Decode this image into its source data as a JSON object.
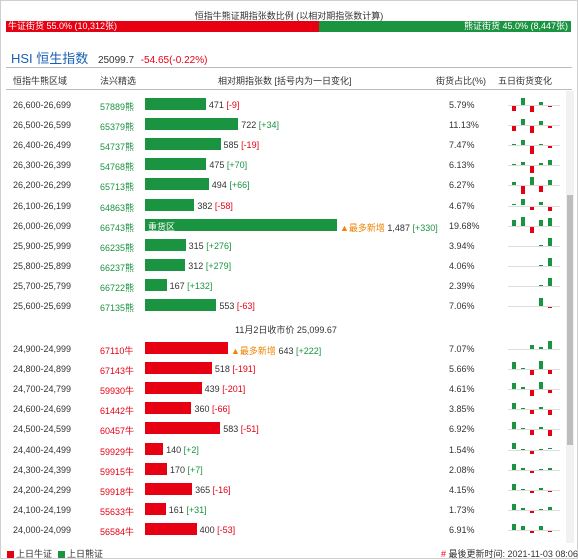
{
  "title": "恒指牛熊证期指张数比例 (以相对期指张数计算)",
  "ratio_bar": {
    "bear_label": "牛证街货 55.0% (10,312张)",
    "bull_label": "熊证街货 45.0% (8,447张)",
    "bear_fraction": 0.55
  },
  "index": {
    "code": "HSI",
    "name": "恒生指数",
    "value": "25099.7",
    "change": "-54.65(-0.22%)"
  },
  "headers": {
    "range": "恒指牛熊区域",
    "code": "法兴精选",
    "relative": "相对期指张数 [括号内为一日变化]",
    "pct": "街货占比(%)",
    "five_day": "五日街货变化"
  },
  "bear_rows": [
    {
      "range": "26,600-26,699",
      "code": "57889熊",
      "contracts": 471,
      "change": "[-9]",
      "pct": "5.79%",
      "spark": [
        -0.5,
        0.8,
        -0.7,
        0.3,
        -0.1
      ]
    },
    {
      "range": "26,500-26,599",
      "code": "65379熊",
      "contracts": 722,
      "change": "[+34]",
      "pct": "11.13%",
      "spark": [
        -0.6,
        0.7,
        -0.8,
        0.5,
        -0.2
      ]
    },
    {
      "range": "26,400-26,499",
      "code": "54737熊",
      "contracts": 585,
      "change": "[-19]",
      "pct": "7.47%",
      "spark": [
        0.1,
        0.6,
        -0.9,
        0.1,
        -0.2
      ]
    },
    {
      "range": "26,300-26,399",
      "code": "54768熊",
      "contracts": 475,
      "change": "[+70]",
      "pct": "6.13%",
      "spark": [
        0.1,
        0.4,
        -0.8,
        0.3,
        0.6
      ]
    },
    {
      "range": "26,200-26,299",
      "code": "65713熊",
      "contracts": 494,
      "change": "[+66]",
      "pct": "6.27%",
      "spark": [
        0.4,
        -0.8,
        0.9,
        -0.6,
        0.6
      ]
    },
    {
      "range": "26,100-26,199",
      "code": "64863熊",
      "contracts": 382,
      "change": "[-58]",
      "pct": "4.67%",
      "spark": [
        0.2,
        0.7,
        -0.4,
        0.4,
        -0.5
      ]
    },
    {
      "range": "26,000-26,099",
      "code": "66743熊",
      "contracts": 1487,
      "change": "[+330]",
      "pct": "19.68%",
      "spark": [
        0.6,
        0.9,
        -0.7,
        0.6,
        0.8
      ],
      "label": "重货区",
      "tag": "▲最多新增"
    },
    {
      "range": "25,900-25,999",
      "code": "66235熊",
      "contracts": 315,
      "change": "[+276]",
      "pct": "3.94%",
      "spark": [
        0,
        0,
        0,
        0.1,
        0.9
      ]
    },
    {
      "range": "25,800-25,899",
      "code": "66237熊",
      "contracts": 312,
      "change": "[+279]",
      "pct": "4.06%",
      "spark": [
        0,
        0,
        0,
        0.1,
        0.9
      ]
    },
    {
      "range": "25,700-25,799",
      "code": "66722熊",
      "contracts": 167,
      "change": "[+132]",
      "pct": "2.39%",
      "spark": [
        0,
        0,
        0,
        0.1,
        0.9
      ]
    },
    {
      "range": "25,600-25,699",
      "code": "67135熊",
      "contracts": 553,
      "change": "[-63]",
      "pct": "7.06%",
      "spark": [
        0,
        0,
        0,
        0.9,
        -0.1
      ]
    }
  ],
  "mid_label": "11月2日收市价 25,099.67",
  "bull_rows": [
    {
      "range": "24,900-24,999",
      "code": "67110牛",
      "contracts": 643,
      "change": "[+222]",
      "pct": "7.07%",
      "spark": [
        0,
        0,
        0.4,
        0.2,
        0.9
      ],
      "tag": "▲最多新增"
    },
    {
      "range": "24,800-24,899",
      "code": "67143牛",
      "contracts": 518,
      "change": "[-191]",
      "pct": "5.66%",
      "spark": [
        0.8,
        0.1,
        -0.5,
        0.9,
        -0.4
      ]
    },
    {
      "range": "24,700-24,799",
      "code": "59930牛",
      "contracts": 439,
      "change": "[-201]",
      "pct": "4.61%",
      "spark": [
        0.7,
        0.2,
        -0.6,
        0.8,
        -0.3
      ]
    },
    {
      "range": "24,600-24,699",
      "code": "61442牛",
      "contracts": 360,
      "change": "[-66]",
      "pct": "3.85%",
      "spark": [
        0.7,
        0.1,
        -0.4,
        0.2,
        -0.5
      ]
    },
    {
      "range": "24,500-24,599",
      "code": "60457牛",
      "contracts": 583,
      "change": "[-51]",
      "pct": "6.92%",
      "spark": [
        0.8,
        0.2,
        -0.5,
        0.3,
        -0.6
      ]
    },
    {
      "range": "24,400-24,499",
      "code": "59929牛",
      "contracts": 140,
      "change": "[+2]",
      "pct": "1.54%",
      "spark": [
        0.7,
        0.1,
        -0.4,
        0.1,
        0.2
      ]
    },
    {
      "range": "24,300-24,399",
      "code": "59915牛",
      "contracts": 170,
      "change": "[+7]",
      "pct": "2.08%",
      "spark": [
        0.6,
        0.2,
        -0.3,
        0.1,
        0.2
      ]
    },
    {
      "range": "24,200-24,299",
      "code": "59918牛",
      "contracts": 365,
      "change": "[-16]",
      "pct": "4.15%",
      "spark": [
        0.6,
        0.1,
        -0.3,
        0.2,
        -0.2
      ]
    },
    {
      "range": "24,100-24,199",
      "code": "55633牛",
      "contracts": 161,
      "change": "[+31]",
      "pct": "1.73%",
      "spark": [
        0.6,
        0.2,
        -0.3,
        0.1,
        0.3
      ]
    },
    {
      "range": "24,000-24,099",
      "code": "56584牛",
      "contracts": 400,
      "change": "[-53]",
      "pct": "6.91%",
      "spark": [
        0.7,
        0.4,
        -0.2,
        0.4,
        -0.1
      ]
    }
  ],
  "legend": {
    "bull": "上日牛证",
    "bear": "上日熊证",
    "update": "最後更新时间: 2021-11-03 08:06"
  },
  "colors": {
    "bull": "#e60012",
    "bear": "#1b9442",
    "tag": "#f08300"
  }
}
